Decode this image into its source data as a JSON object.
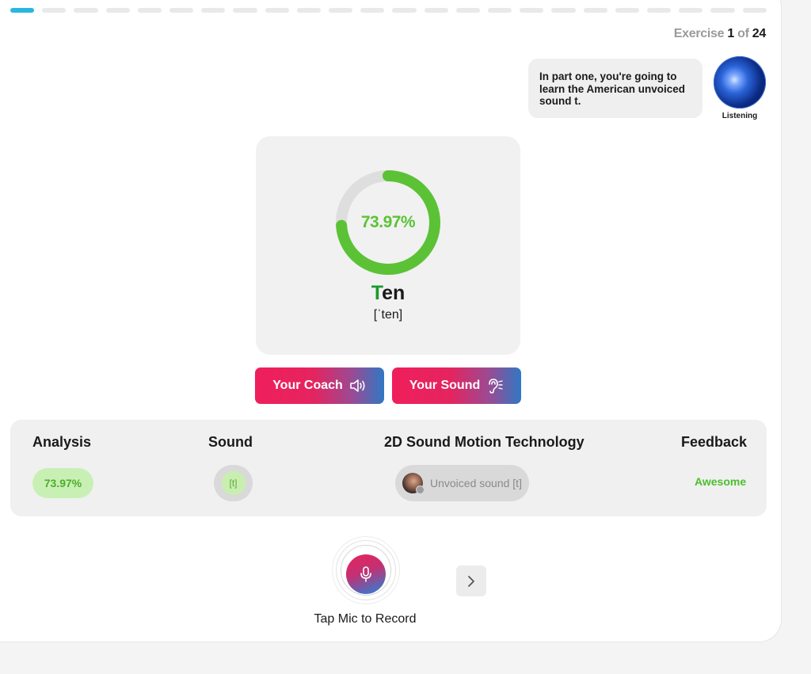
{
  "progress": {
    "total": 24,
    "completed": 1
  },
  "header": {
    "exercise_label": "Exercise",
    "current": "1",
    "of_label": "of",
    "total": "24"
  },
  "coach": {
    "message": "In part one, you're going to learn the American unvoiced sound t.",
    "status": "Listening"
  },
  "word_card": {
    "score": 0.7397,
    "score_text": "73.97%",
    "word_highlight": "T",
    "word_rest": "en",
    "ipa": "[ˈten]"
  },
  "buttons": {
    "your_coach": "Your Coach",
    "your_sound": "Your Sound"
  },
  "analysis": {
    "headers": {
      "analysis": "Analysis",
      "sound": "Sound",
      "motion": "2D Sound Motion Technology",
      "feedback": "Feedback"
    },
    "score": "73.97%",
    "sound": "[t]",
    "motion_label": "Unvoiced sound [t]",
    "feedback": "Awesome"
  },
  "recorder": {
    "label": "Tap Mic to Record"
  },
  "colors": {
    "accent_progress": "#2ab7df",
    "score_green": "#5bc236",
    "button_gradient_start": "#ef1f5c",
    "button_gradient_end": "#2f78c4"
  },
  "icons": {
    "coach_button": "speaker-icon",
    "sound_button": "ear-icon",
    "record": "microphone-icon",
    "next": "chevron-right-icon"
  }
}
